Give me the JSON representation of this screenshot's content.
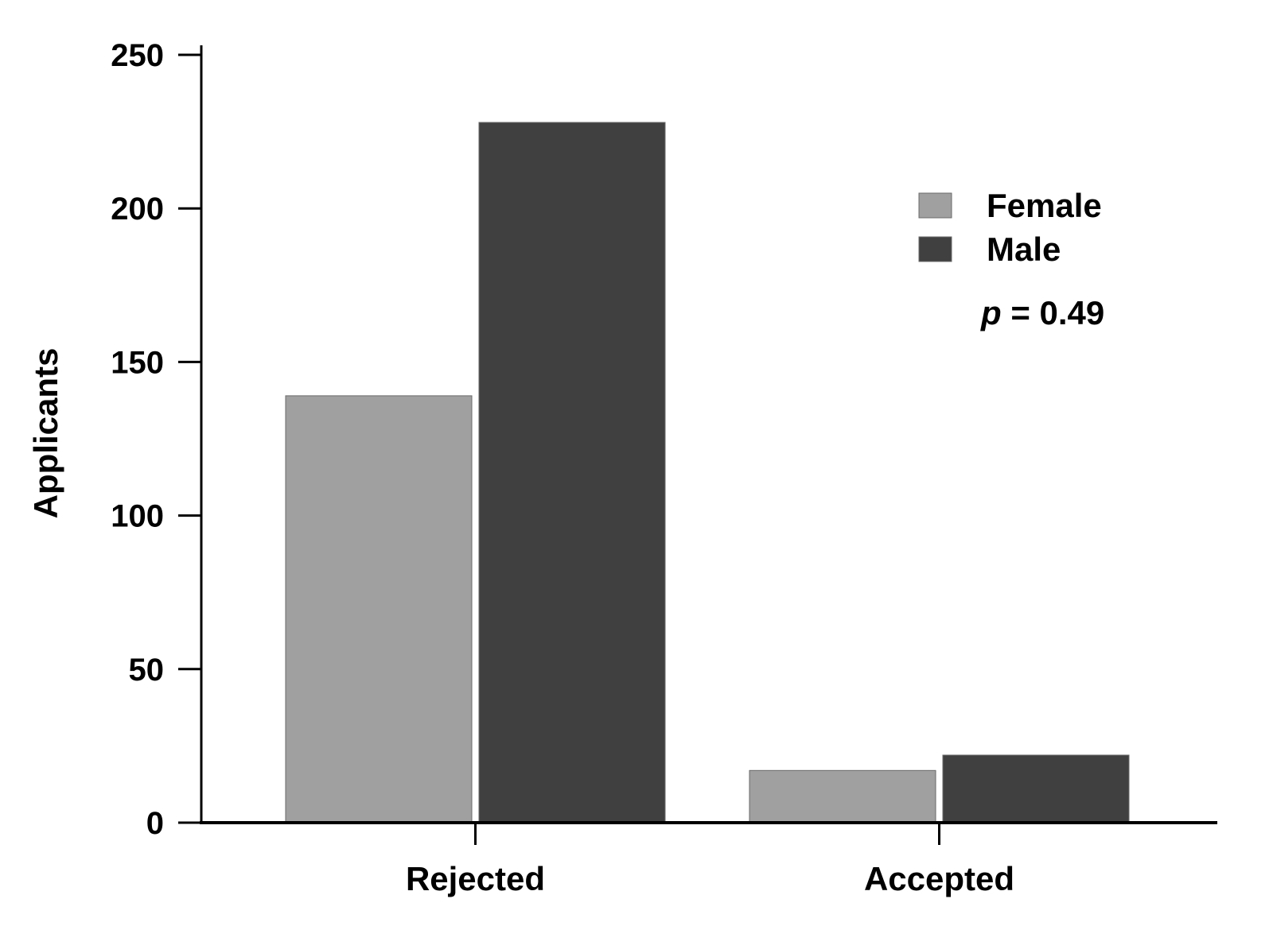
{
  "chart_data": {
    "type": "bar",
    "categories": [
      "Rejected",
      "Accepted"
    ],
    "series": [
      {
        "name": "Female",
        "values": [
          139,
          17
        ],
        "color": "#a0a0a0"
      },
      {
        "name": "Male",
        "values": [
          228,
          22
        ],
        "color": "#404040"
      }
    ],
    "ylabel": "Applicants",
    "xlabel": "",
    "ylim": [
      0,
      250
    ],
    "yticks": [
      0,
      50,
      100,
      150,
      200,
      250
    ],
    "ytick_labels": [
      "0",
      "50",
      "100",
      "150",
      "200",
      "250"
    ],
    "grid": false,
    "legend_position": "top-right",
    "annotation": {
      "italic": "p",
      "text": " = 0.49"
    }
  }
}
